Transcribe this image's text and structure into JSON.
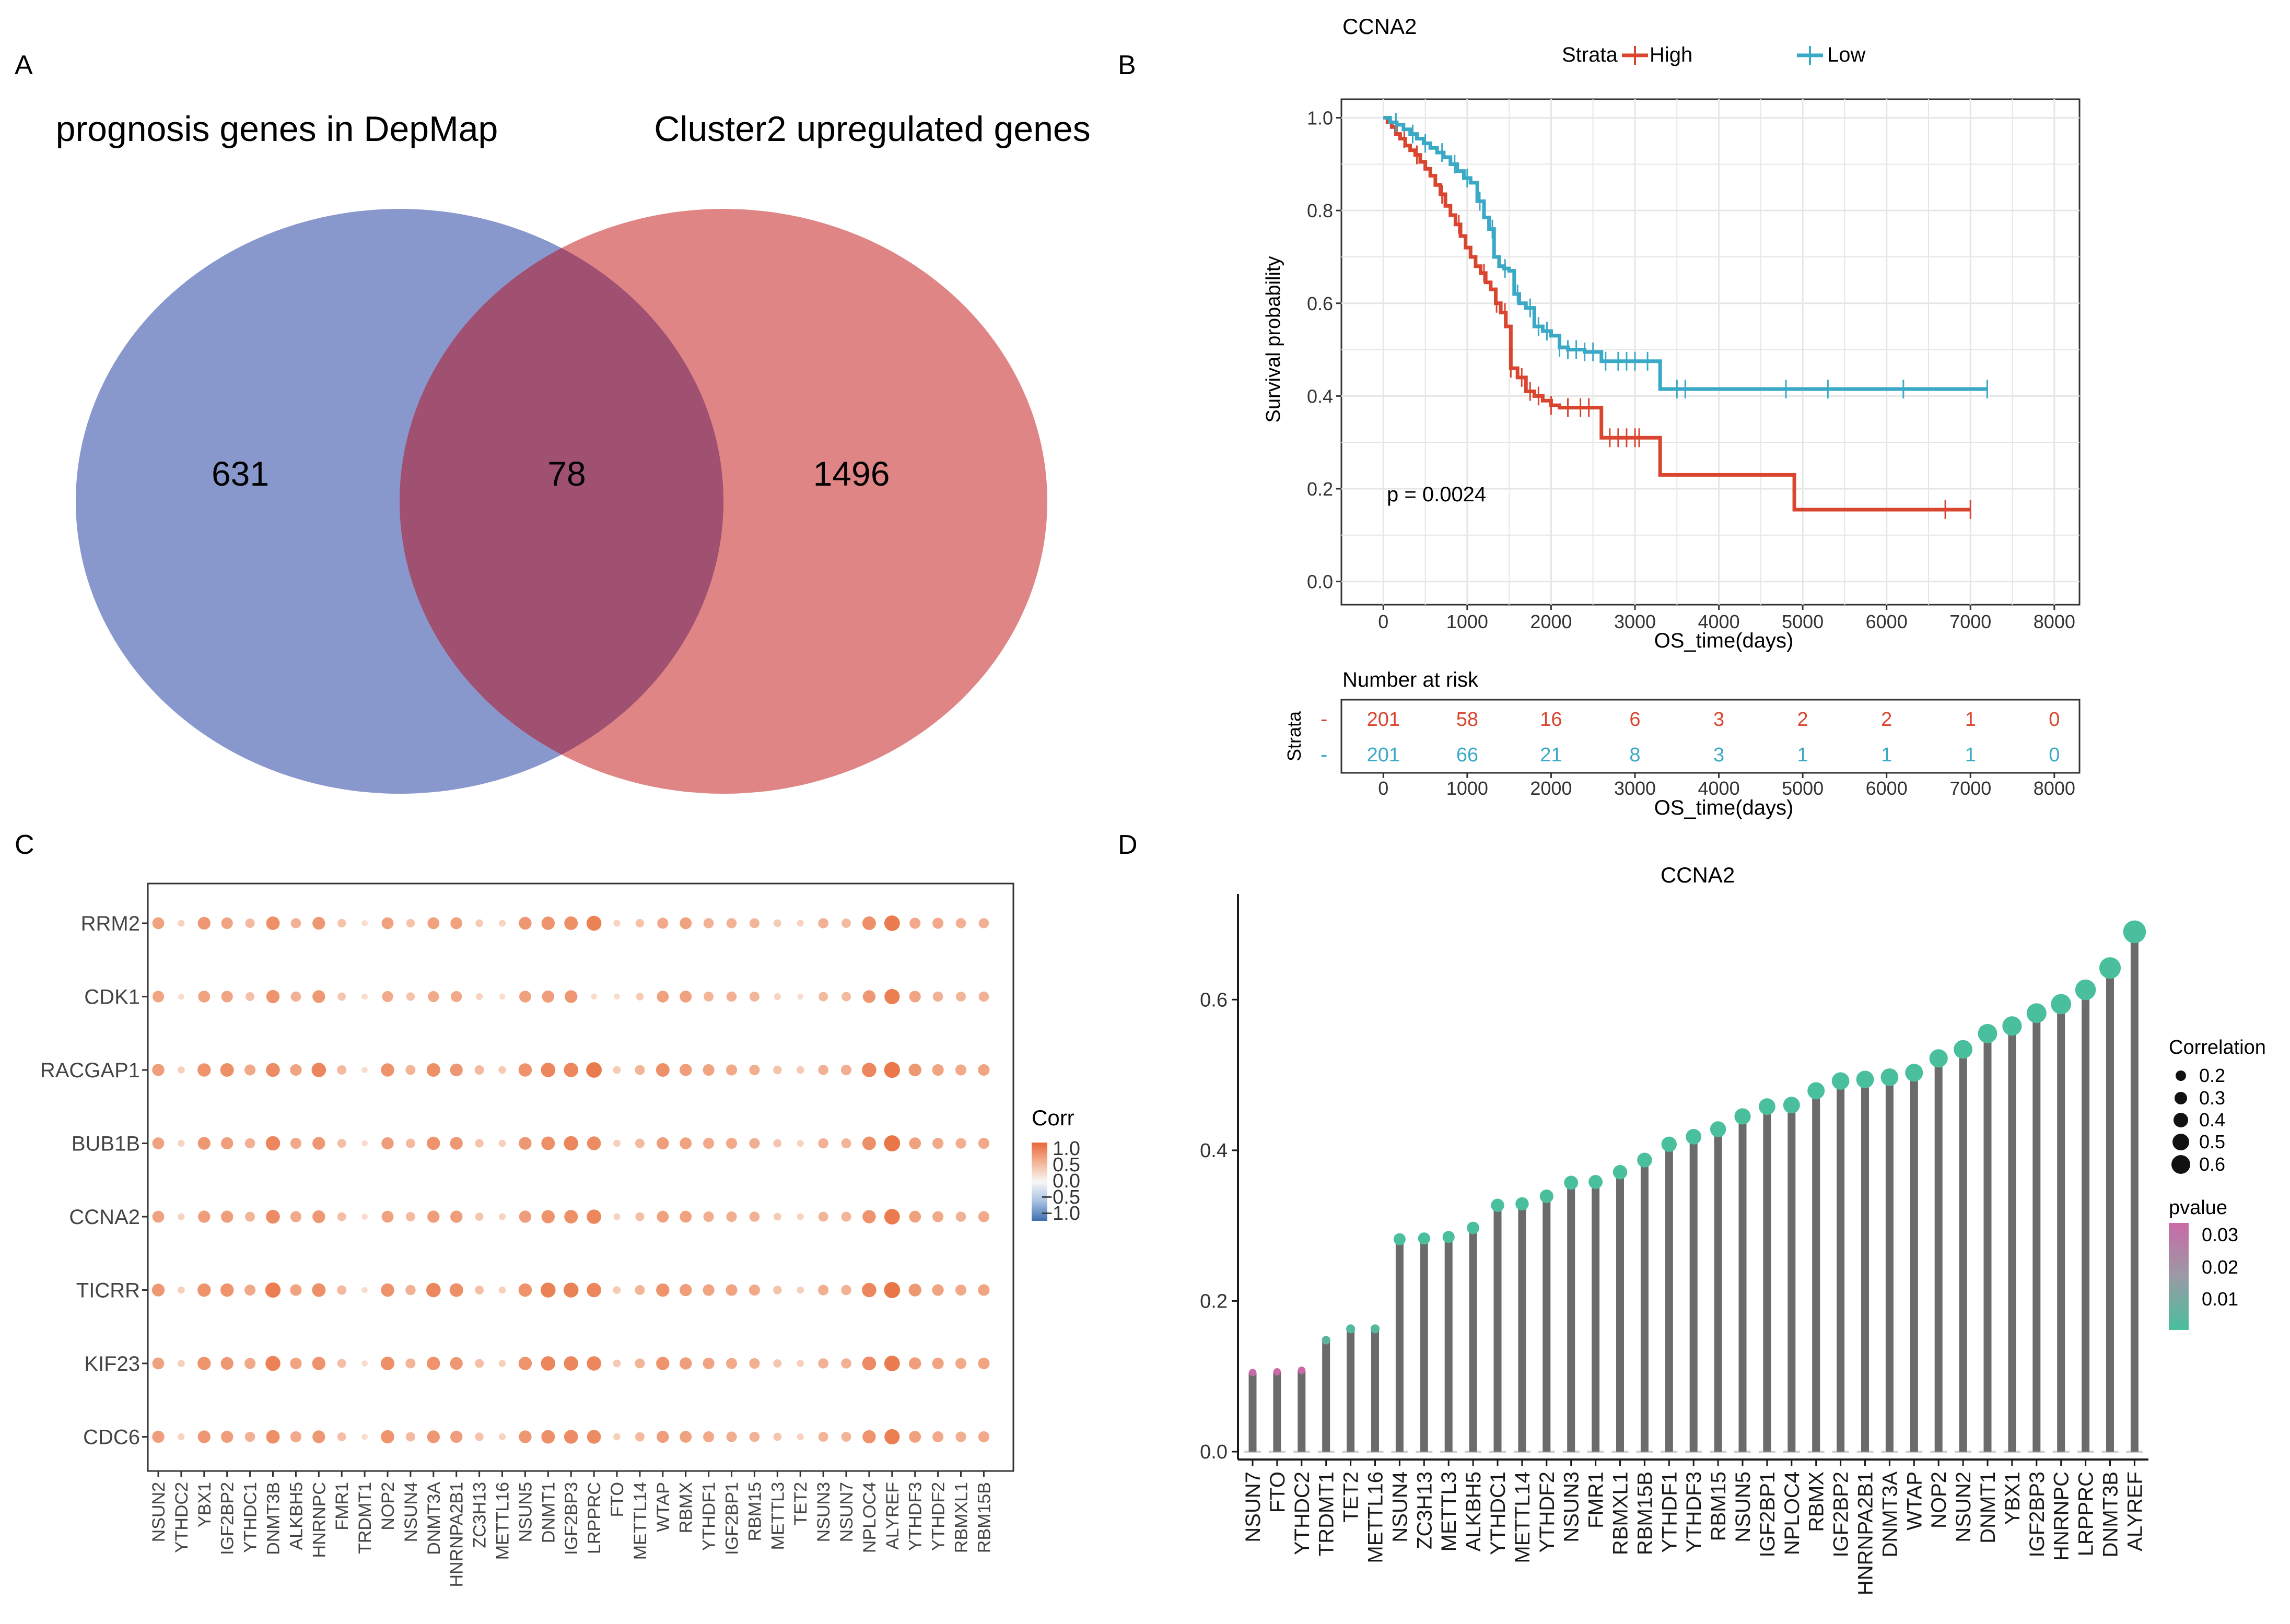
{
  "panels": {
    "a": "A",
    "b": "B",
    "c": "C",
    "d": "D"
  },
  "chart_data": [
    {
      "type": "venn",
      "panel": "A",
      "sets": [
        {
          "name": "prognosis genes in DepMap",
          "color": "#7f8fc8"
        },
        {
          "name": "Cluster2 upregulated genes",
          "color": "#dd7878"
        }
      ],
      "counts": {
        "left_only": "631",
        "overlap": "78",
        "right_only": "1496"
      },
      "overlap_color": "#a05070"
    },
    {
      "type": "line",
      "subtype": "kaplan-meier",
      "panel": "B",
      "title": "CCNA2",
      "legend": {
        "title": "Strata",
        "position": "top"
      },
      "xlabel": "OS_time(days)",
      "ylabel": "Survival probability",
      "xlim": [
        0,
        8000
      ],
      "ylim": [
        0,
        1
      ],
      "xticks": [
        "0",
        "1000",
        "2000",
        "3000",
        "4000",
        "5000",
        "6000",
        "7000",
        "8000"
      ],
      "yticks": [
        "0.0",
        "0.2",
        "0.4",
        "0.6",
        "0.8",
        "1.0"
      ],
      "pvalue_label": "p = 0.0024",
      "series": [
        {
          "name": "High",
          "color": "#d9452e",
          "x": [
            0,
            50,
            100,
            150,
            200,
            260,
            320,
            380,
            440,
            500,
            560,
            620,
            680,
            740,
            800,
            860,
            920,
            980,
            1040,
            1100,
            1160,
            1220,
            1280,
            1340,
            1400,
            1460,
            1520,
            1600,
            1700,
            1800,
            1900,
            2000,
            2100,
            2300,
            2600,
            2700,
            3000,
            3300,
            3600,
            4000,
            4500,
            4900,
            5500,
            6000,
            6700,
            7000
          ],
          "y": [
            1.0,
            0.99,
            0.98,
            0.965,
            0.955,
            0.94,
            0.93,
            0.92,
            0.905,
            0.89,
            0.875,
            0.855,
            0.835,
            0.81,
            0.79,
            0.77,
            0.745,
            0.72,
            0.7,
            0.68,
            0.665,
            0.645,
            0.63,
            0.6,
            0.58,
            0.55,
            0.46,
            0.44,
            0.41,
            0.4,
            0.39,
            0.38,
            0.375,
            0.375,
            0.31,
            0.31,
            0.31,
            0.23,
            0.23,
            0.23,
            0.23,
            0.155,
            0.155,
            0.155,
            0.155,
            0.155
          ],
          "censor_x": [
            250,
            400,
            700,
            900,
            1200,
            1350,
            1450,
            1520,
            1650,
            1750,
            1850,
            2000,
            2200,
            2350,
            2450,
            2700,
            2800,
            2900,
            3000,
            3050,
            6700,
            7000
          ]
        },
        {
          "name": "Low",
          "color": "#3aa9c6",
          "x": [
            0,
            80,
            160,
            240,
            320,
            400,
            480,
            560,
            640,
            720,
            800,
            880,
            960,
            1040,
            1120,
            1200,
            1260,
            1320,
            1380,
            1440,
            1500,
            1560,
            1620,
            1700,
            1800,
            1900,
            2000,
            2100,
            2200,
            2400,
            2600,
            3200,
            3300,
            4000,
            5000,
            6000,
            7200
          ],
          "y": [
            1.0,
            0.99,
            0.985,
            0.975,
            0.965,
            0.955,
            0.945,
            0.935,
            0.925,
            0.915,
            0.9,
            0.885,
            0.87,
            0.86,
            0.82,
            0.785,
            0.76,
            0.7,
            0.68,
            0.675,
            0.67,
            0.62,
            0.6,
            0.59,
            0.55,
            0.54,
            0.53,
            0.505,
            0.5,
            0.495,
            0.475,
            0.475,
            0.415,
            0.415,
            0.415,
            0.415,
            0.415
          ],
          "censor_x": [
            150,
            350,
            500,
            700,
            850,
            1000,
            1150,
            1300,
            1450,
            1600,
            1750,
            1850,
            1950,
            2100,
            2200,
            2300,
            2400,
            2500,
            2650,
            2800,
            2900,
            3000,
            3150,
            3500,
            3600,
            4800,
            5300,
            6200,
            7200
          ]
        }
      ]
    },
    {
      "type": "table",
      "subtype": "number-at-risk",
      "panel": "B",
      "title": "Number at risk",
      "ylabel": "Strata",
      "xlabel": "OS_time(days)",
      "xticks": [
        "0",
        "1000",
        "2000",
        "3000",
        "4000",
        "5000",
        "6000",
        "7000",
        "8000"
      ],
      "row_markers": [
        "-",
        "-"
      ],
      "rows": [
        {
          "name": "High",
          "color": "#d9452e",
          "values": [
            "201",
            "58",
            "16",
            "6",
            "3",
            "2",
            "2",
            "1",
            "0"
          ]
        },
        {
          "name": "Low",
          "color": "#3aa9c6",
          "values": [
            "201",
            "66",
            "21",
            "8",
            "3",
            "1",
            "1",
            "1",
            "0"
          ]
        }
      ]
    },
    {
      "type": "heatmap",
      "subtype": "dot-plot",
      "panel": "C",
      "rows": [
        "RRM2",
        "CDK1",
        "RACGAP1",
        "BUB1B",
        "CCNA2",
        "TICRR",
        "KIF23",
        "CDC6"
      ],
      "columns": [
        "NSUN2",
        "YTHDC2",
        "YBX1",
        "IGF2BP2",
        "YTHDC1",
        "DNMT3B",
        "ALKBH5",
        "HNRNPC",
        "FMR1",
        "TRDMT1",
        "NOP2",
        "NSUN4",
        "DNMT3A",
        "HNRNPA2B1",
        "ZC3H13",
        "METTL16",
        "NSUN5",
        "DNMT1",
        "IGF2BP3",
        "LRPPRC",
        "FTO",
        "METTL14",
        "WTAP",
        "RBMX",
        "YTHDF1",
        "IGF2BP1",
        "RBM15",
        "METTL3",
        "TET2",
        "NSUN3",
        "NSUN7",
        "NPLOC4",
        "ALYREF",
        "YTHDF3",
        "YTHDF2",
        "RBMXL1",
        "RBM15B"
      ],
      "values": [
        [
          0.4,
          0.1,
          0.45,
          0.38,
          0.25,
          0.5,
          0.3,
          0.45,
          0.2,
          0.05,
          0.4,
          0.2,
          0.4,
          0.4,
          0.15,
          0.1,
          0.45,
          0.48,
          0.5,
          0.58,
          0.1,
          0.2,
          0.35,
          0.4,
          0.3,
          0.3,
          0.28,
          0.15,
          0.1,
          0.3,
          0.25,
          0.5,
          0.62,
          0.35,
          0.35,
          0.3,
          0.3
        ],
        [
          0.38,
          0.05,
          0.4,
          0.38,
          0.22,
          0.48,
          0.3,
          0.45,
          0.18,
          0.05,
          0.35,
          0.2,
          0.35,
          0.35,
          0.1,
          0.05,
          0.4,
          0.42,
          0.45,
          0.05,
          0.05,
          0.15,
          0.4,
          0.4,
          0.28,
          0.3,
          0.28,
          0.1,
          0.05,
          0.25,
          0.25,
          0.45,
          0.6,
          0.38,
          0.3,
          0.28,
          0.3
        ],
        [
          0.42,
          0.12,
          0.48,
          0.5,
          0.35,
          0.52,
          0.38,
          0.55,
          0.25,
          0.05,
          0.48,
          0.28,
          0.5,
          0.45,
          0.25,
          0.15,
          0.48,
          0.55,
          0.55,
          0.62,
          0.15,
          0.28,
          0.5,
          0.42,
          0.38,
          0.35,
          0.32,
          0.2,
          0.15,
          0.3,
          0.32,
          0.55,
          0.64,
          0.45,
          0.38,
          0.35,
          0.38
        ],
        [
          0.4,
          0.1,
          0.45,
          0.42,
          0.3,
          0.55,
          0.35,
          0.45,
          0.22,
          0.05,
          0.42,
          0.25,
          0.48,
          0.45,
          0.2,
          0.12,
          0.45,
          0.5,
          0.55,
          0.52,
          0.12,
          0.25,
          0.42,
          0.4,
          0.35,
          0.35,
          0.32,
          0.18,
          0.1,
          0.3,
          0.28,
          0.5,
          0.65,
          0.4,
          0.35,
          0.32,
          0.35
        ],
        [
          0.4,
          0.1,
          0.42,
          0.42,
          0.28,
          0.52,
          0.35,
          0.45,
          0.22,
          0.05,
          0.4,
          0.25,
          0.42,
          0.42,
          0.18,
          0.1,
          0.42,
          0.48,
          0.5,
          0.55,
          0.1,
          0.22,
          0.4,
          0.4,
          0.32,
          0.32,
          0.3,
          0.15,
          0.1,
          0.28,
          0.28,
          0.48,
          0.62,
          0.4,
          0.35,
          0.3,
          0.35
        ],
        [
          0.45,
          0.12,
          0.48,
          0.48,
          0.35,
          0.6,
          0.38,
          0.5,
          0.25,
          0.05,
          0.48,
          0.3,
          0.55,
          0.5,
          0.22,
          0.12,
          0.48,
          0.58,
          0.58,
          0.55,
          0.15,
          0.28,
          0.48,
          0.42,
          0.38,
          0.38,
          0.35,
          0.2,
          0.12,
          0.32,
          0.3,
          0.55,
          0.65,
          0.45,
          0.38,
          0.35,
          0.38
        ],
        [
          0.4,
          0.12,
          0.48,
          0.45,
          0.35,
          0.58,
          0.38,
          0.48,
          0.22,
          0.05,
          0.5,
          0.28,
          0.48,
          0.45,
          0.22,
          0.12,
          0.48,
          0.55,
          0.55,
          0.55,
          0.15,
          0.28,
          0.48,
          0.42,
          0.38,
          0.35,
          0.32,
          0.18,
          0.12,
          0.3,
          0.3,
          0.52,
          0.62,
          0.42,
          0.38,
          0.35,
          0.38
        ],
        [
          0.42,
          0.1,
          0.45,
          0.42,
          0.3,
          0.5,
          0.35,
          0.45,
          0.22,
          0.05,
          0.48,
          0.25,
          0.45,
          0.42,
          0.2,
          0.1,
          0.45,
          0.5,
          0.52,
          0.52,
          0.12,
          0.25,
          0.42,
          0.4,
          0.35,
          0.32,
          0.3,
          0.18,
          0.1,
          0.28,
          0.28,
          0.48,
          0.6,
          0.4,
          0.35,
          0.32,
          0.35
        ]
      ],
      "legend": {
        "title": "Corr",
        "ticks": [
          "1.0",
          "0.5",
          "0.0",
          "−0.5",
          "−1.0"
        ],
        "range": [
          -1,
          1
        ]
      }
    },
    {
      "type": "bar",
      "subtype": "lollipop",
      "panel": "D",
      "title": "CCNA2",
      "ylim": [
        0,
        0.7
      ],
      "yticks": [
        "0.0",
        "0.2",
        "0.4",
        "0.6"
      ],
      "categories": [
        "NSUN7",
        "FTO",
        "YTHDC2",
        "TRDMT1",
        "TET2",
        "METTL16",
        "NSUN4",
        "ZC3H13",
        "METTL3",
        "ALKBH5",
        "YTHDC1",
        "METTL14",
        "YTHDF2",
        "NSUN3",
        "FMR1",
        "RBMXL1",
        "RBM15B",
        "YTHDF1",
        "YTHDF3",
        "RBM15",
        "NSUN5",
        "IGF2BP1",
        "NPLOC4",
        "RBMX",
        "IGF2BP2",
        "HNRNPA2B1",
        "DNMT3A",
        "WTAP",
        "NOP2",
        "NSUN2",
        "DNMT1",
        "YBX1",
        "IGF2BP3",
        "HNRNPC",
        "LRPPRC",
        "DNMT3B",
        "ALYREF"
      ],
      "values": [
        0.105,
        0.106,
        0.108,
        0.148,
        0.163,
        0.163,
        0.282,
        0.283,
        0.285,
        0.297,
        0.327,
        0.329,
        0.339,
        0.357,
        0.358,
        0.371,
        0.387,
        0.408,
        0.418,
        0.428,
        0.445,
        0.458,
        0.46,
        0.479,
        0.492,
        0.494,
        0.497,
        0.503,
        0.522,
        0.534,
        0.555,
        0.565,
        0.582,
        0.594,
        0.613,
        0.642,
        0.69
      ],
      "pvalues": [
        0.03,
        0.03,
        0.03,
        0.005,
        0.003,
        0.003,
        0.001,
        0.001,
        0.001,
        0.001,
        0.001,
        0.001,
        0.001,
        0.001,
        0.001,
        0.001,
        0.001,
        0.001,
        0.001,
        0.001,
        0.001,
        0.001,
        0.001,
        0.001,
        0.001,
        0.001,
        0.001,
        0.001,
        0.001,
        0.001,
        0.001,
        0.001,
        0.001,
        0.001,
        0.001,
        0.001,
        0.001
      ],
      "size_legend": {
        "title": "Correlation",
        "labels": [
          "0.2",
          "0.3",
          "0.4",
          "0.5",
          "0.6"
        ]
      },
      "color_legend": {
        "title": "pvalue",
        "labels": [
          "0.03",
          "0.02",
          "0.01"
        ]
      }
    }
  ]
}
